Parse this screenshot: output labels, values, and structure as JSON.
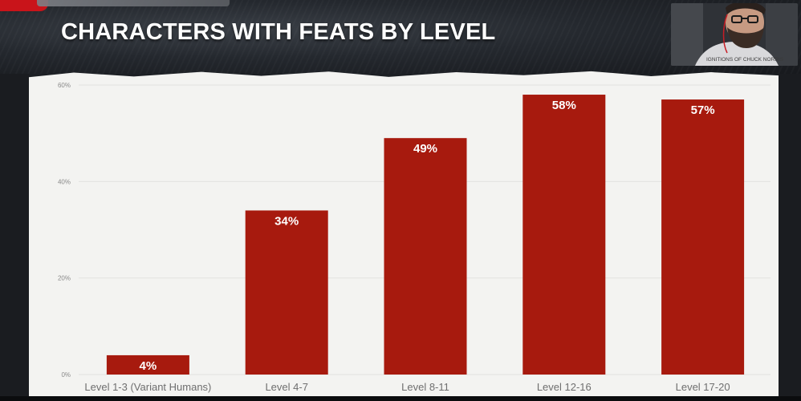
{
  "slide": {
    "title": "CHARACTERS WITH FEATS BY LEVEL",
    "webcam_shirt_text": "IGNITIONS OF CHUCK NORRIS"
  },
  "colors": {
    "bar": "#a71a0e",
    "grid": "#e2e2e0",
    "paper": "#f3f3f1",
    "title": "#ffffff"
  },
  "chart_data": {
    "type": "bar",
    "title": "CHARACTERS WITH FEATS BY LEVEL",
    "categories": [
      "Level 1-3 (Variant Humans)",
      "Level 4-7",
      "Level 8-11",
      "Level 12-16",
      "Level 17-20"
    ],
    "values": [
      4,
      34,
      49,
      58,
      57
    ],
    "value_labels": [
      "4%",
      "34%",
      "49%",
      "58%",
      "57%"
    ],
    "y_ticks": [
      0,
      20,
      40,
      60
    ],
    "y_tick_labels": [
      "0%",
      "20%",
      "40%",
      "60%"
    ],
    "ylim": [
      0,
      60
    ],
    "xlabel": "",
    "ylabel": "",
    "grid": true,
    "legend": "none"
  }
}
